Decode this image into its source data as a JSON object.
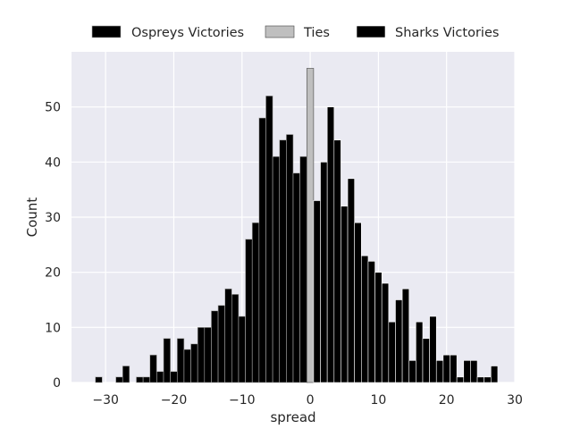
{
  "chart_data": {
    "type": "bar",
    "xlabel": "spread",
    "ylabel": "Count",
    "xlim": [
      -35,
      30
    ],
    "ylim": [
      0,
      60
    ],
    "xticks": [
      -30,
      -20,
      -10,
      0,
      10,
      20,
      30
    ],
    "yticks": [
      0,
      10,
      20,
      30,
      40,
      50
    ],
    "xtick_labels": [
      "−30",
      "−20",
      "−10",
      "0",
      "10",
      "20",
      "30"
    ],
    "ytick_labels": [
      "0",
      "10",
      "20",
      "30",
      "40",
      "50"
    ],
    "grid": true,
    "legend_position": "top-center",
    "background_color": "#eaeaf2",
    "grid_color": "#ffffff",
    "series": [
      {
        "name": "Ospreys Victories",
        "color": "#000000",
        "edge": "#aaaaaa",
        "x": [
          -31,
          -28,
          -27,
          -25,
          -24,
          -23,
          -22,
          -21,
          -20,
          -19,
          -18,
          -17,
          -16,
          -15,
          -14,
          -13,
          -12,
          -11,
          -10,
          -9,
          -8,
          -7,
          -6,
          -5,
          -4,
          -3,
          -2,
          -1
        ],
        "values": [
          1,
          1,
          3,
          1,
          1,
          5,
          2,
          8,
          2,
          8,
          6,
          7,
          10,
          10,
          13,
          14,
          17,
          16,
          12,
          26,
          29,
          48,
          52,
          41,
          44,
          45,
          38,
          41
        ]
      },
      {
        "name": "Ties",
        "color": "#bfbfbf",
        "edge": "#444444",
        "x": [
          0
        ],
        "values": [
          57
        ]
      },
      {
        "name": "Sharks Victories",
        "color": "#000000",
        "edge": "#ffffff",
        "x": [
          1,
          2,
          3,
          4,
          5,
          6,
          7,
          8,
          9,
          10,
          11,
          12,
          13,
          14,
          15,
          16,
          17,
          18,
          19,
          20,
          21,
          22,
          23,
          24,
          25,
          26,
          27
        ],
        "values": [
          33,
          40,
          50,
          44,
          32,
          37,
          29,
          23,
          22,
          20,
          18,
          11,
          15,
          17,
          4,
          11,
          8,
          12,
          4,
          5,
          5,
          1,
          4,
          4,
          1,
          1,
          3
        ]
      }
    ]
  }
}
